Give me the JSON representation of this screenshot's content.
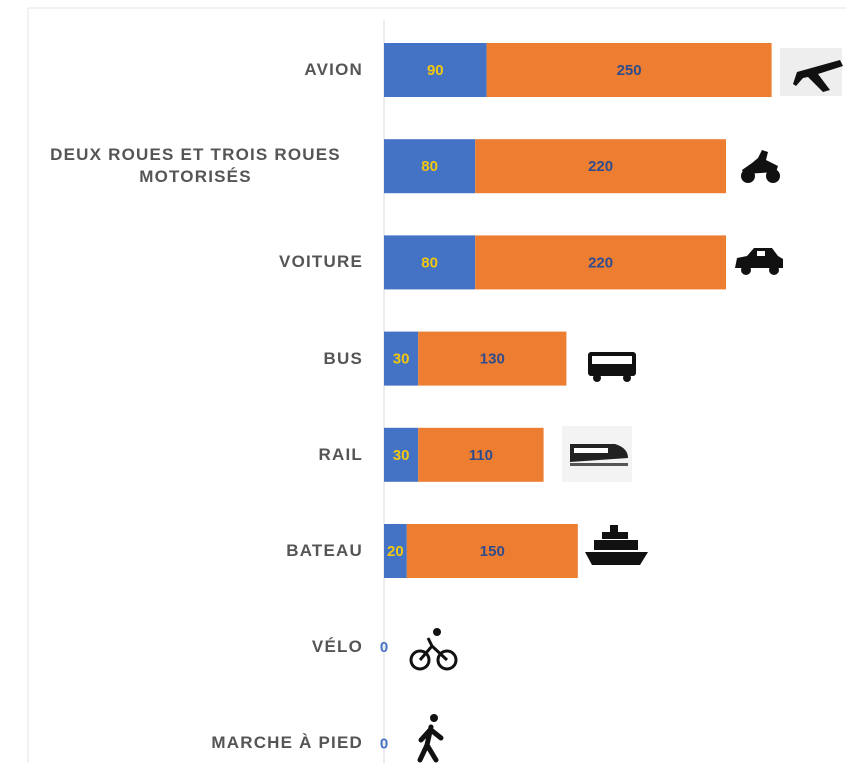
{
  "chart_data": {
    "type": "bar",
    "orientation": "horizontal",
    "stacked": true,
    "categories": [
      "AVION",
      "DEUX ROUES ET TROIS ROUES MOTORISÉS",
      "VOITURE",
      "BUS",
      "RAIL",
      "BATEAU",
      "VÉLO",
      "MARCHE À PIED"
    ],
    "series": [
      {
        "color": "#4472c4",
        "label_color": "#f2c80f",
        "values": [
          90,
          80,
          80,
          30,
          30,
          20,
          0,
          0
        ]
      },
      {
        "color": "#ed7d31",
        "label_color": "#2f4d8c",
        "values": [
          250,
          220,
          220,
          130,
          110,
          150,
          0,
          0
        ]
      }
    ],
    "xlim": [
      0,
      400
    ]
  }
}
